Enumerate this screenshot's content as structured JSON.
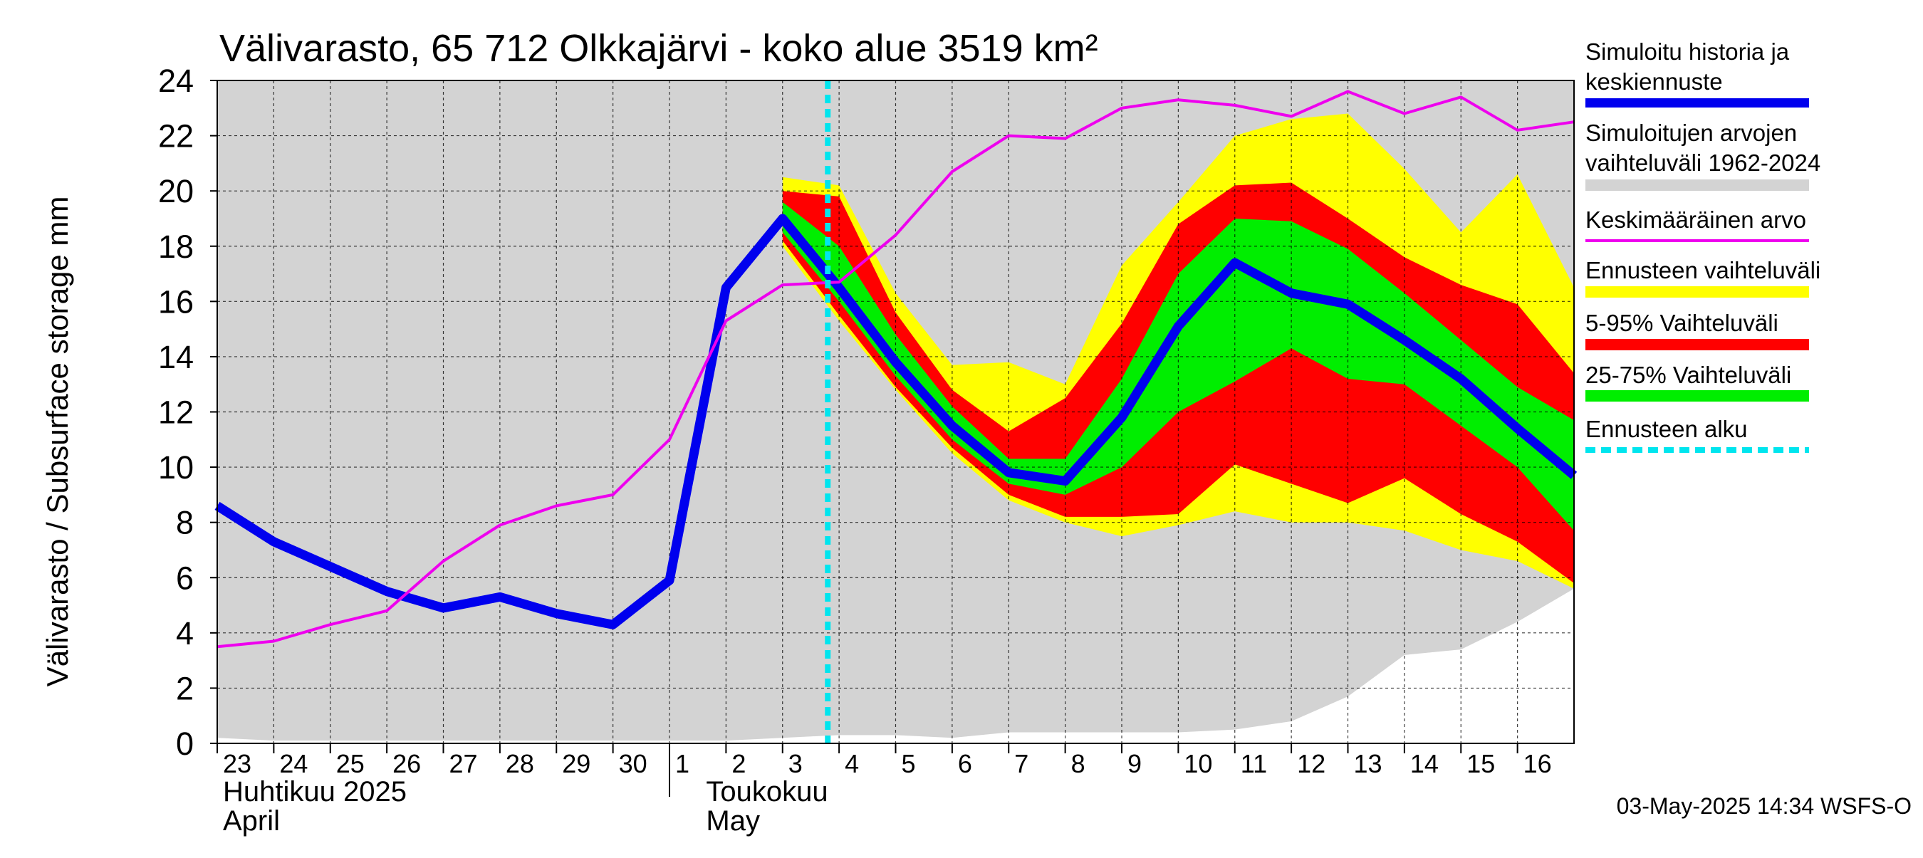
{
  "chart_data": {
    "type": "area",
    "title": "Välivarasto, 65 712 Olkkajärvi - koko alue 3519 km²",
    "ylabel": "Välivarasto / Subsurface storage  mm",
    "ylim": [
      0,
      24
    ],
    "yticks": [
      "0",
      "2",
      "4",
      "6",
      "8",
      "10",
      "12",
      "14",
      "16",
      "18",
      "20",
      "22",
      "24"
    ],
    "grid": true,
    "legend_position": "right",
    "x_tick_labels": [
      "23",
      "24",
      "25",
      "26",
      "27",
      "28",
      "29",
      "30",
      "1",
      "2",
      "3",
      "4",
      "5",
      "6",
      "7",
      "8",
      "9",
      "10",
      "11",
      "12",
      "13",
      "14",
      "15",
      "16"
    ],
    "month_labels": [
      {
        "line1": "Huhtikuu  2025",
        "line2": "April"
      },
      {
        "line1": "Toukokuu",
        "line2": "May"
      }
    ],
    "forecast_start_day": 10.8,
    "footer": "03-May-2025 14:34 WSFS-O",
    "colors": {
      "background_band": "#d3d3d3",
      "simulated": "#0000ee",
      "mean": "#ee00ee",
      "forecast_range": "#ffff00",
      "p5_95": "#ff0000",
      "p25_75": "#00ee00",
      "forecast_start": "#00e5ee"
    },
    "series": [
      {
        "name": "Simuloitu historia ja keskiennuste",
        "color": "#0000ee",
        "x": [
          0,
          1,
          2,
          3,
          4,
          5,
          6,
          7,
          8,
          9,
          10,
          11,
          12,
          13,
          14,
          15,
          16,
          17,
          18,
          19,
          20,
          21,
          22,
          23,
          24
        ],
        "y": [
          8.6,
          7.3,
          6.4,
          5.5,
          4.9,
          5.3,
          4.7,
          4.3,
          5.9,
          16.5,
          19.0,
          16.5,
          13.8,
          11.5,
          9.8,
          9.5,
          11.8,
          15.1,
          17.4,
          16.3,
          15.9,
          14.6,
          13.2,
          11.4,
          9.7
        ]
      },
      {
        "name": "Keskimääräinen arvo",
        "color": "#ee00ee",
        "x": [
          0,
          1,
          2,
          3,
          4,
          5,
          6,
          7,
          8,
          9,
          10,
          11,
          12,
          13,
          14,
          15,
          16,
          17,
          18,
          19,
          20,
          21,
          22,
          23,
          24
        ],
        "y": [
          3.5,
          3.7,
          4.3,
          4.8,
          6.6,
          7.9,
          8.6,
          9.0,
          11.0,
          15.3,
          16.6,
          16.7,
          18.4,
          20.7,
          22.0,
          21.9,
          23.0,
          23.3,
          23.1,
          22.7,
          23.6,
          22.8,
          23.4,
          22.2,
          22.5
        ]
      }
    ],
    "bands": [
      {
        "name": "Simuloitujen arvojen vaihteluväli 1962-2024",
        "color": "#d3d3d3",
        "x": [
          0,
          1,
          2,
          3,
          4,
          5,
          6,
          7,
          8,
          9,
          10,
          11,
          12,
          13,
          14,
          15,
          16,
          17,
          18,
          19,
          20,
          21,
          22,
          23,
          24
        ],
        "low": [
          0.2,
          0.1,
          0.1,
          0.1,
          0.1,
          0.1,
          0.1,
          0.1,
          0.1,
          0.1,
          0.2,
          0.3,
          0.3,
          0.2,
          0.4,
          0.4,
          0.4,
          0.4,
          0.5,
          0.8,
          1.7,
          3.2,
          3.4,
          4.4,
          5.6
        ],
        "high": [
          24,
          24,
          24,
          24,
          24,
          24,
          24,
          24,
          24,
          24,
          24,
          24,
          24,
          24,
          24,
          24,
          24,
          24,
          24,
          24,
          24,
          24,
          24,
          24,
          24
        ]
      },
      {
        "name": "Ennusteen vaihteluväli",
        "color": "#ffff00",
        "x": [
          10,
          11,
          12,
          13,
          14,
          15,
          16,
          17,
          18,
          19,
          20,
          21,
          22,
          23,
          24
        ],
        "low": [
          18.0,
          15.3,
          12.8,
          10.5,
          8.8,
          8.0,
          7.5,
          7.9,
          8.4,
          8.0,
          8.0,
          7.7,
          7.0,
          6.6,
          5.6
        ],
        "high": [
          20.5,
          20.2,
          16.3,
          13.7,
          13.8,
          13.0,
          17.3,
          19.6,
          22.0,
          22.6,
          22.8,
          20.8,
          18.5,
          20.6,
          16.5
        ]
      },
      {
        "name": "5-95% Vaihteluväli",
        "color": "#ff0000",
        "x": [
          10,
          11,
          12,
          13,
          14,
          15,
          16,
          17,
          18,
          19,
          20,
          21,
          22,
          23,
          24
        ],
        "low": [
          18.2,
          15.5,
          12.9,
          10.7,
          9.0,
          8.2,
          8.2,
          8.3,
          10.1,
          9.4,
          8.7,
          9.6,
          8.3,
          7.3,
          5.8
        ],
        "high": [
          20.0,
          19.8,
          15.6,
          12.8,
          11.3,
          12.5,
          15.2,
          18.8,
          20.2,
          20.3,
          19.0,
          17.6,
          16.6,
          15.9,
          13.4
        ]
      },
      {
        "name": "25-75% Vaihteluväli",
        "color": "#00ee00",
        "x": [
          10,
          11,
          12,
          13,
          14,
          15,
          16,
          17,
          18,
          19,
          20,
          21,
          22,
          23,
          24
        ],
        "low": [
          18.5,
          16.0,
          13.3,
          11.0,
          9.4,
          9.0,
          10.0,
          12.0,
          13.1,
          14.3,
          13.2,
          13.0,
          11.5,
          10.0,
          7.7
        ],
        "high": [
          19.6,
          18.0,
          14.8,
          12.2,
          10.3,
          10.3,
          13.2,
          17.0,
          19.0,
          18.9,
          17.9,
          16.3,
          14.6,
          12.9,
          11.7
        ]
      }
    ],
    "legend": [
      {
        "label": "Simuloitu historia ja keskiennuste",
        "color": "#0000ee",
        "style": "thick-line"
      },
      {
        "label": "Simuloitujen arvojen vaihteluväli 1962-2024",
        "color": "#d3d3d3",
        "style": "band"
      },
      {
        "label": "Keskimääräinen arvo",
        "color": "#ee00ee",
        "style": "line"
      },
      {
        "label": "Ennusteen vaihteluväli",
        "color": "#ffff00",
        "style": "band"
      },
      {
        "label": "5-95% Vaihteluväli",
        "color": "#ff0000",
        "style": "band"
      },
      {
        "label": "25-75% Vaihteluväli",
        "color": "#00ee00",
        "style": "band"
      },
      {
        "label": "Ennusteen alku",
        "color": "#00e5ee",
        "style": "dashed"
      }
    ]
  }
}
